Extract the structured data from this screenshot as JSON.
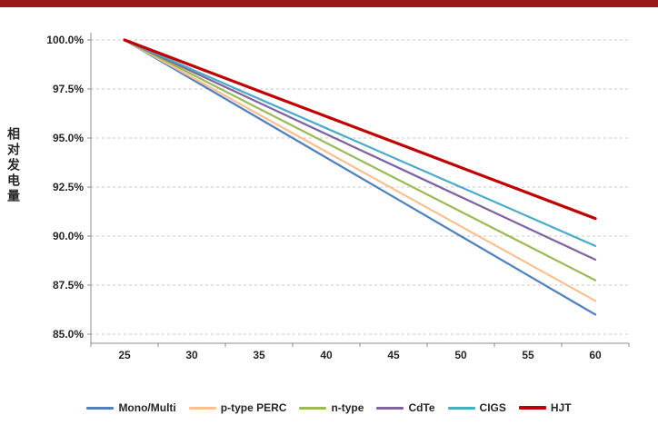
{
  "page": {
    "background": "#ffffff",
    "top_bar_color": "#9a1a1a"
  },
  "chart_data": {
    "type": "line",
    "title": "",
    "xlabel": "",
    "ylabel": "相对发电量",
    "x": [
      25,
      30,
      35,
      40,
      45,
      50,
      55,
      60
    ],
    "ylim": [
      85.0,
      100.0
    ],
    "ytick_step": 2.5,
    "ytick_labels": [
      "85.0%",
      "87.5%",
      "90.0%",
      "92.5%",
      "95.0%",
      "97.5%",
      "100.0%"
    ],
    "grid": "horizontal-dashed",
    "legend_position": "bottom",
    "axis_color": "#8c8c8c",
    "gridline_color": "#c8c8c8",
    "series": [
      {
        "name": "Mono/Multi",
        "color": "#4f81bd",
        "line_width": 2.25,
        "values": [
          100.0,
          98.0,
          96.0,
          94.0,
          92.0,
          90.0,
          88.0,
          86.0
        ]
      },
      {
        "name": "p-type PERC",
        "color": "#fac090",
        "line_width": 2.25,
        "values": [
          100.0,
          98.1,
          96.2,
          94.3,
          92.4,
          90.5,
          88.6,
          86.7
        ]
      },
      {
        "name": "n-type",
        "color": "#9bbb59",
        "line_width": 2.25,
        "values": [
          100.0,
          98.25,
          96.5,
          94.75,
          93.0,
          91.25,
          89.5,
          87.75
        ]
      },
      {
        "name": "CdTe",
        "color": "#8064a2",
        "line_width": 2.25,
        "values": [
          100.0,
          98.4,
          96.8,
          95.2,
          93.6,
          92.0,
          90.4,
          88.8
        ]
      },
      {
        "name": "CIGS",
        "color": "#4bacc6",
        "line_width": 2.25,
        "values": [
          100.0,
          98.5,
          97.0,
          95.5,
          94.0,
          92.5,
          91.0,
          89.5
        ]
      },
      {
        "name": "HJT",
        "color": "#c00000",
        "line_width": 3.2,
        "values": [
          100.0,
          98.7,
          97.4,
          96.1,
          94.8,
          93.5,
          92.2,
          90.9
        ]
      }
    ]
  }
}
